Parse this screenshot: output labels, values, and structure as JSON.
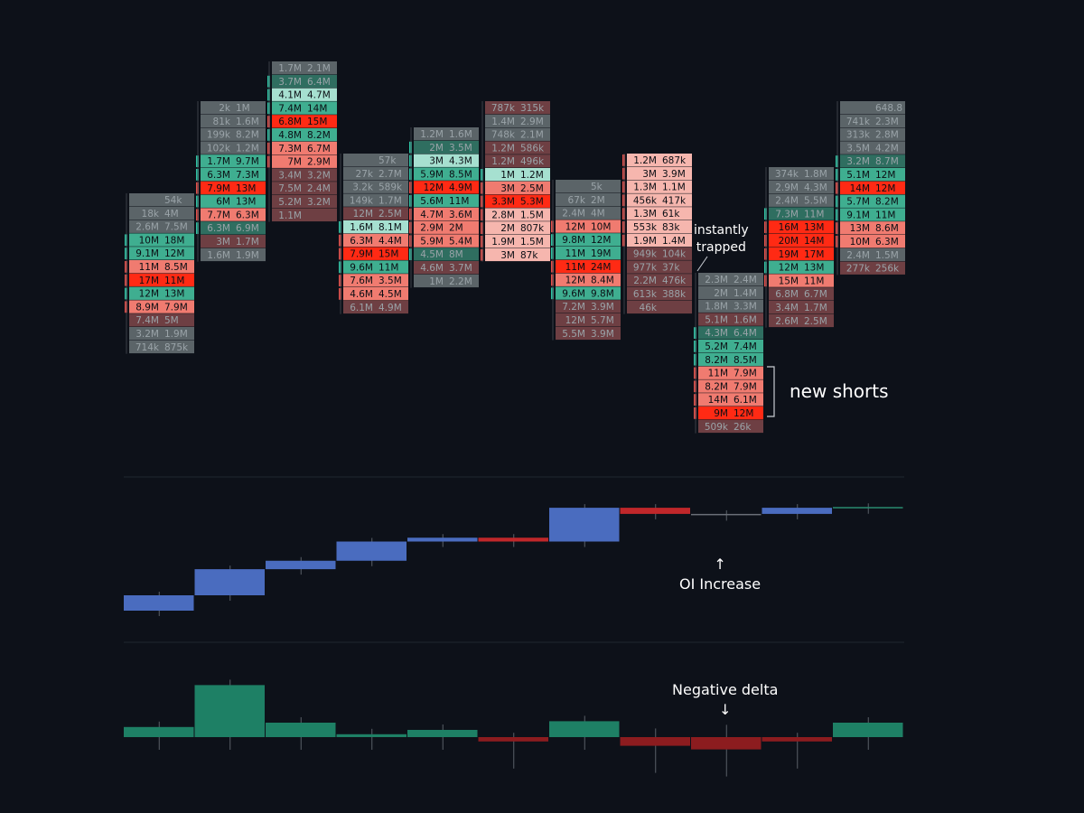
{
  "chart_data": [
    {
      "type": "heatmap",
      "subtype": "footprint",
      "columns": [
        {
          "rows": [
            [
              "",
              "54k"
            ],
            [
              "18k",
              "4M"
            ],
            [
              "2.6M",
              "7.5M"
            ],
            [
              "10M",
              "18M"
            ],
            [
              "9.1M",
              "12M"
            ],
            [
              "11M",
              "8.5M"
            ],
            [
              "17M",
              "11M"
            ],
            [
              "12M",
              "13M"
            ],
            [
              "8.9M",
              "7.9M"
            ],
            [
              "7.4M",
              "5M"
            ],
            [
              "3.2M",
              "1.9M"
            ],
            [
              "714k",
              "875k"
            ]
          ],
          "styles": [
            "gm",
            "gm",
            "gm",
            "t",
            "t",
            "r",
            "rb",
            "t",
            "r",
            "rd",
            "gm",
            "gm"
          ]
        },
        {
          "rows": [
            [
              "2k",
              "1M"
            ],
            [
              "81k",
              "1.6M"
            ],
            [
              "199k",
              "8.2M"
            ],
            [
              "102k",
              "1.2M"
            ],
            [
              "1.7M",
              "9.7M"
            ],
            [
              "6.3M",
              "7.3M"
            ],
            [
              "7.9M",
              "13M"
            ],
            [
              "6M",
              "13M"
            ],
            [
              "7.7M",
              "6.3M"
            ],
            [
              "6.3M",
              "6.9M"
            ],
            [
              "3M",
              "1.7M"
            ],
            [
              "1.6M",
              "1.9M"
            ]
          ],
          "styles": [
            "gm",
            "gm",
            "gm",
            "gm",
            "t",
            "t",
            "rb",
            "t",
            "r",
            "tm",
            "rd",
            "gm"
          ]
        },
        {
          "rows": [
            [
              "1.7M",
              "2.1M"
            ],
            [
              "3.7M",
              "6.4M"
            ],
            [
              "4.1M",
              "4.7M"
            ],
            [
              "7.4M",
              "14M"
            ],
            [
              "6.8M",
              "15M"
            ],
            [
              "4.8M",
              "8.2M"
            ],
            [
              "7.3M",
              "6.7M"
            ],
            [
              "7M",
              "2.9M"
            ],
            [
              "3.4M",
              "3.2M"
            ],
            [
              "7.5M",
              "2.4M"
            ],
            [
              "5.2M",
              "3.2M"
            ],
            [
              "1.1M",
              ""
            ]
          ],
          "styles": [
            "gm",
            "tm",
            "tl",
            "t",
            "rb",
            "t",
            "r",
            "r",
            "rd",
            "rd",
            "rd",
            "rd"
          ]
        },
        {
          "rows": [
            [
              "",
              "57k"
            ],
            [
              "27k",
              "2.7M"
            ],
            [
              "3.2k",
              "589k"
            ],
            [
              "149k",
              "1.7M"
            ],
            [
              "12M",
              "2.5M"
            ],
            [
              "1.6M",
              "8.1M"
            ],
            [
              "6.3M",
              "4.4M"
            ],
            [
              "7.9M",
              "15M"
            ],
            [
              "9.6M",
              "11M"
            ],
            [
              "7.6M",
              "3.5M"
            ],
            [
              "4.6M",
              "4.5M"
            ],
            [
              "6.1M",
              "4.9M"
            ]
          ],
          "styles": [
            "gm",
            "gm",
            "gm",
            "gm",
            "rd",
            "tl",
            "r",
            "rb",
            "t",
            "r",
            "r",
            "rd"
          ]
        },
        {
          "rows": [
            [
              "1.2M",
              "1.6M"
            ],
            [
              "2M",
              "3.5M"
            ],
            [
              "3M",
              "4.3M"
            ],
            [
              "5.9M",
              "8.5M"
            ],
            [
              "12M",
              "4.9M"
            ],
            [
              "5.6M",
              "11M"
            ],
            [
              "4.7M",
              "3.6M"
            ],
            [
              "2.9M",
              "2M"
            ],
            [
              "5.9M",
              "5.4M"
            ],
            [
              "4.5M",
              "8M"
            ],
            [
              "4.6M",
              "3.7M"
            ],
            [
              "1M",
              "2.2M"
            ]
          ],
          "styles": [
            "gm",
            "tm",
            "tl",
            "t",
            "rb",
            "t",
            "r",
            "r",
            "r",
            "tm",
            "rd",
            "gm"
          ]
        },
        {
          "rows": [
            [
              "787k",
              "315k"
            ],
            [
              "1.4M",
              "2.9M"
            ],
            [
              "748k",
              "2.1M"
            ],
            [
              "1.2M",
              "586k"
            ],
            [
              "1.2M",
              "496k"
            ],
            [
              "1M",
              "1.2M"
            ],
            [
              "3M",
              "2.5M"
            ],
            [
              "3.3M",
              "5.3M"
            ],
            [
              "2.8M",
              "1.5M"
            ],
            [
              "2M",
              "807k"
            ],
            [
              "1.9M",
              "1.5M"
            ],
            [
              "3M",
              "87k"
            ]
          ],
          "styles": [
            "rd",
            "gm",
            "gm",
            "rd",
            "rd",
            "tl",
            "r",
            "rb",
            "rl",
            "rl",
            "rl",
            "rl"
          ]
        },
        {
          "rows": [
            [
              "",
              "5k"
            ],
            [
              "67k",
              "2M"
            ],
            [
              "2.4M",
              "4M"
            ],
            [
              "12M",
              "10M"
            ],
            [
              "9.8M",
              "12M"
            ],
            [
              "11M",
              "19M"
            ],
            [
              "11M",
              "24M"
            ],
            [
              "12M",
              "8.4M"
            ],
            [
              "9.6M",
              "9.8M"
            ],
            [
              "7.2M",
              "3.9M"
            ],
            [
              "12M",
              "5.7M"
            ],
            [
              "5.5M",
              "3.9M"
            ]
          ],
          "styles": [
            "gm",
            "gm",
            "gm",
            "r",
            "t",
            "t",
            "rb",
            "r",
            "t",
            "rd",
            "rd",
            "rd"
          ]
        },
        {
          "rows": [
            [
              "1.2M",
              "687k"
            ],
            [
              "3M",
              "3.9M"
            ],
            [
              "1.3M",
              "1.1M"
            ],
            [
              "456k",
              "417k"
            ],
            [
              "1.3M",
              "61k"
            ],
            [
              "553k",
              "83k"
            ],
            [
              "1.9M",
              "1.4M"
            ],
            [
              "949k",
              "104k"
            ],
            [
              "977k",
              "37k"
            ],
            [
              "2.2M",
              "476k"
            ],
            [
              "613k",
              "388k"
            ],
            [
              "46k",
              ""
            ]
          ],
          "styles": [
            "rl",
            "rl",
            "rl",
            "rl",
            "rl",
            "rl",
            "rl",
            "rd",
            "rd",
            "rd",
            "rd",
            "rd"
          ]
        },
        {
          "rows": [
            [
              "2.3M",
              "2.4M"
            ],
            [
              "2M",
              "1.4M"
            ],
            [
              "1.8M",
              "3.3M"
            ],
            [
              "5.1M",
              "1.6M"
            ],
            [
              "4.3M",
              "6.4M"
            ],
            [
              "5.2M",
              "7.4M"
            ],
            [
              "8.2M",
              "8.5M"
            ],
            [
              "11M",
              "7.9M"
            ],
            [
              "8.2M",
              "7.9M"
            ],
            [
              "14M",
              "6.1M"
            ],
            [
              "9M",
              "12M"
            ],
            [
              "509k",
              "26k"
            ]
          ],
          "styles": [
            "gm",
            "gm",
            "gm",
            "rd",
            "tm",
            "t",
            "t",
            "r",
            "r",
            "r",
            "rb",
            "rd"
          ]
        },
        {
          "rows": [
            [
              "374k",
              "1.8M"
            ],
            [
              "2.9M",
              "4.3M"
            ],
            [
              "2.4M",
              "5.5M"
            ],
            [
              "7.3M",
              "11M"
            ],
            [
              "16M",
              "13M"
            ],
            [
              "20M",
              "14M"
            ],
            [
              "19M",
              "17M"
            ],
            [
              "12M",
              "13M"
            ],
            [
              "15M",
              "11M"
            ],
            [
              "6.8M",
              "6.7M"
            ],
            [
              "3.4M",
              "1.7M"
            ],
            [
              "2.6M",
              "2.5M"
            ]
          ],
          "styles": [
            "gm",
            "gm",
            "gm",
            "tm",
            "rb",
            "rb",
            "rb",
            "t",
            "r",
            "rd",
            "rd",
            "rd"
          ]
        },
        {
          "rows": [
            [
              "",
              "648.8"
            ],
            [
              "741k",
              "2.3M"
            ],
            [
              "313k",
              "2.8M"
            ],
            [
              "3.5M",
              "4.2M"
            ],
            [
              "3.2M",
              "8.7M"
            ],
            [
              "5.1M",
              "12M"
            ],
            [
              "14M",
              "12M"
            ],
            [
              "5.7M",
              "8.2M"
            ],
            [
              "9.1M",
              "11M"
            ],
            [
              "13M",
              "8.6M"
            ],
            [
              "10M",
              "6.3M"
            ],
            [
              "2.4M",
              "1.5M"
            ],
            [
              "277k",
              "256k"
            ]
          ],
          "styles": [
            "gm",
            "gm",
            "gm",
            "gm",
            "tm",
            "t",
            "rb",
            "t",
            "t",
            "r",
            "r",
            "gm",
            "rd"
          ]
        }
      ]
    },
    {
      "type": "bar",
      "subtype": "open-interest-candles",
      "bars": [
        {
          "open": 0,
          "close": 1,
          "color": "#4a6cbf"
        },
        {
          "open": 1,
          "close": 2.7,
          "color": "#4a6cbf"
        },
        {
          "open": 2.7,
          "close": 3.25,
          "color": "#4a6cbf"
        },
        {
          "open": 3.25,
          "close": 4.5,
          "color": "#4a6cbf"
        },
        {
          "open": 4.5,
          "close": 4.75,
          "color": "#4a6cbf"
        },
        {
          "open": 4.75,
          "close": 4.5,
          "color": "#c0272a"
        },
        {
          "open": 4.5,
          "close": 6.7,
          "color": "#4a6cbf"
        },
        {
          "open": 6.7,
          "close": 6.3,
          "color": "#c0272a"
        },
        {
          "open": 6.3,
          "close": 6.3,
          "color": "#6a6f78"
        },
        {
          "open": 6.3,
          "close": 6.7,
          "color": "#4a6cbf"
        },
        {
          "open": 6.75,
          "close": 6.75,
          "color": "#2a8a6f"
        }
      ]
    },
    {
      "type": "bar",
      "subtype": "delta",
      "values": [
        0.7,
        3.6,
        1.0,
        0.2,
        0.5,
        -0.3,
        1.1,
        -0.6,
        -0.85,
        -0.3,
        1.0
      ],
      "colors": {
        "positive": "#1e8065",
        "negative": "#8c1c1f"
      }
    }
  ],
  "annotations": {
    "trapped": [
      "instantly",
      "trapped"
    ],
    "new_shorts": "new shorts",
    "oi": {
      "arrow": "↑",
      "text": "OI Increase"
    },
    "delta": {
      "text": "Negative delta",
      "arrow": "↓"
    }
  }
}
